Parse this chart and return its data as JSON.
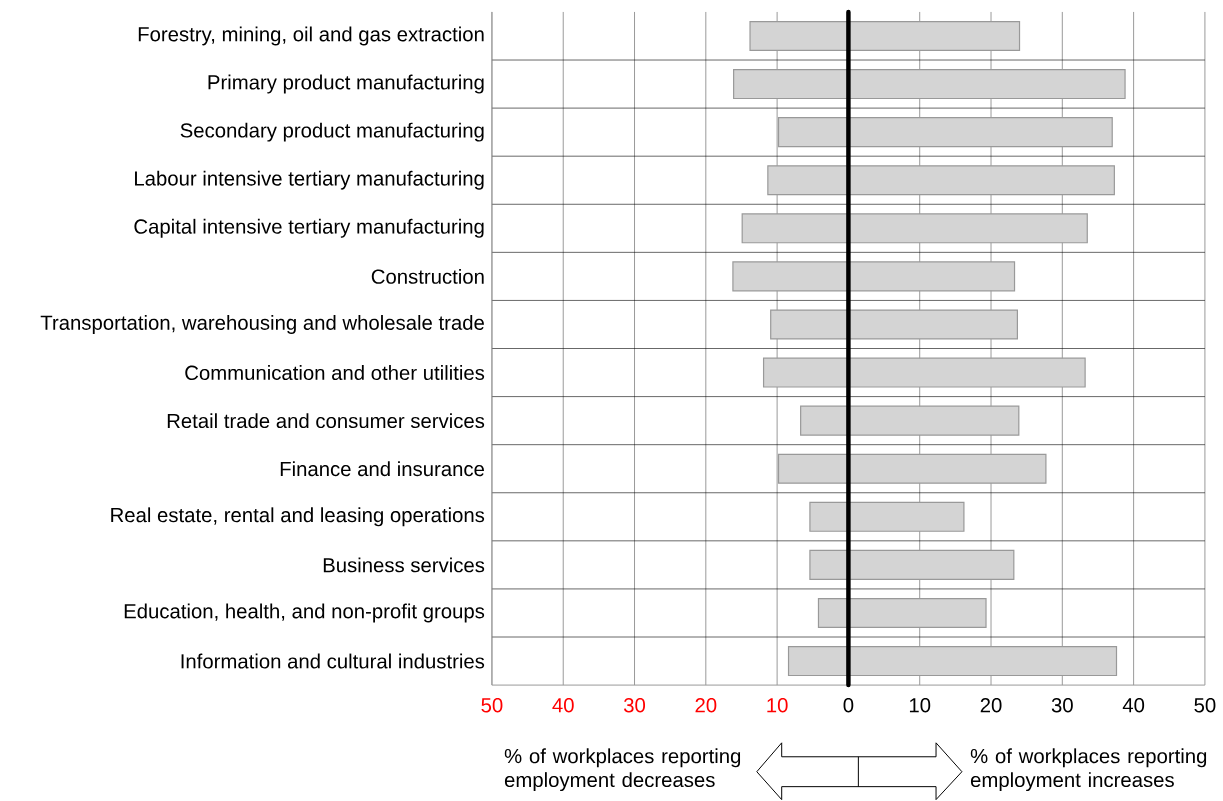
{
  "chart_data": {
    "type": "bar",
    "orientation": "horizontal",
    "stacked": true,
    "categories": [
      "Forestry, mining, oil and gas extraction",
      "Primary product manufacturing",
      "Secondary product manufacturing",
      "Labour intensive tertiary manufacturing",
      "Capital intensive tertiary manufacturing",
      "Construction",
      "Transportation, warehousing and wholesale trade",
      "Communication and other utilities",
      "Retail trade and consumer services",
      "Finance and insurance",
      "Real estate, rental and leasing operations",
      "Business services",
      "Education, health, and non-profit groups",
      "Information and cultural industries"
    ],
    "series": [
      {
        "color": "#d4d4d4",
        "values": [
          -13.8,
          -16.1,
          -9.8,
          -11.3,
          -14.9,
          -16.2,
          -10.9,
          -11.9,
          -6.7,
          -9.8,
          -5.4,
          -5.4,
          -4.2,
          -8.4
        ]
      },
      {
        "color": "#d4d4d4",
        "values": [
          24.0,
          38.8,
          37.0,
          37.3,
          33.5,
          23.3,
          23.7,
          33.2,
          23.9,
          27.7,
          16.2,
          23.2,
          19.3,
          37.6
        ]
      }
    ],
    "xlim": [
      -50,
      50
    ],
    "xticks": [
      {
        "value": -50,
        "label": "50"
      },
      {
        "value": -40,
        "label": "40"
      },
      {
        "value": -30,
        "label": "30"
      },
      {
        "value": -20,
        "label": "20"
      },
      {
        "value": -10,
        "label": "10"
      },
      0,
      10,
      20,
      30,
      40,
      50
    ],
    "grid": true,
    "ref_lines": [
      {
        "axis": "x",
        "value": 0,
        "color": "#000000"
      }
    ],
    "annotations": [
      "% of workplaces reporting employment decreases",
      "% of workplaces reporting employment increases"
    ]
  }
}
